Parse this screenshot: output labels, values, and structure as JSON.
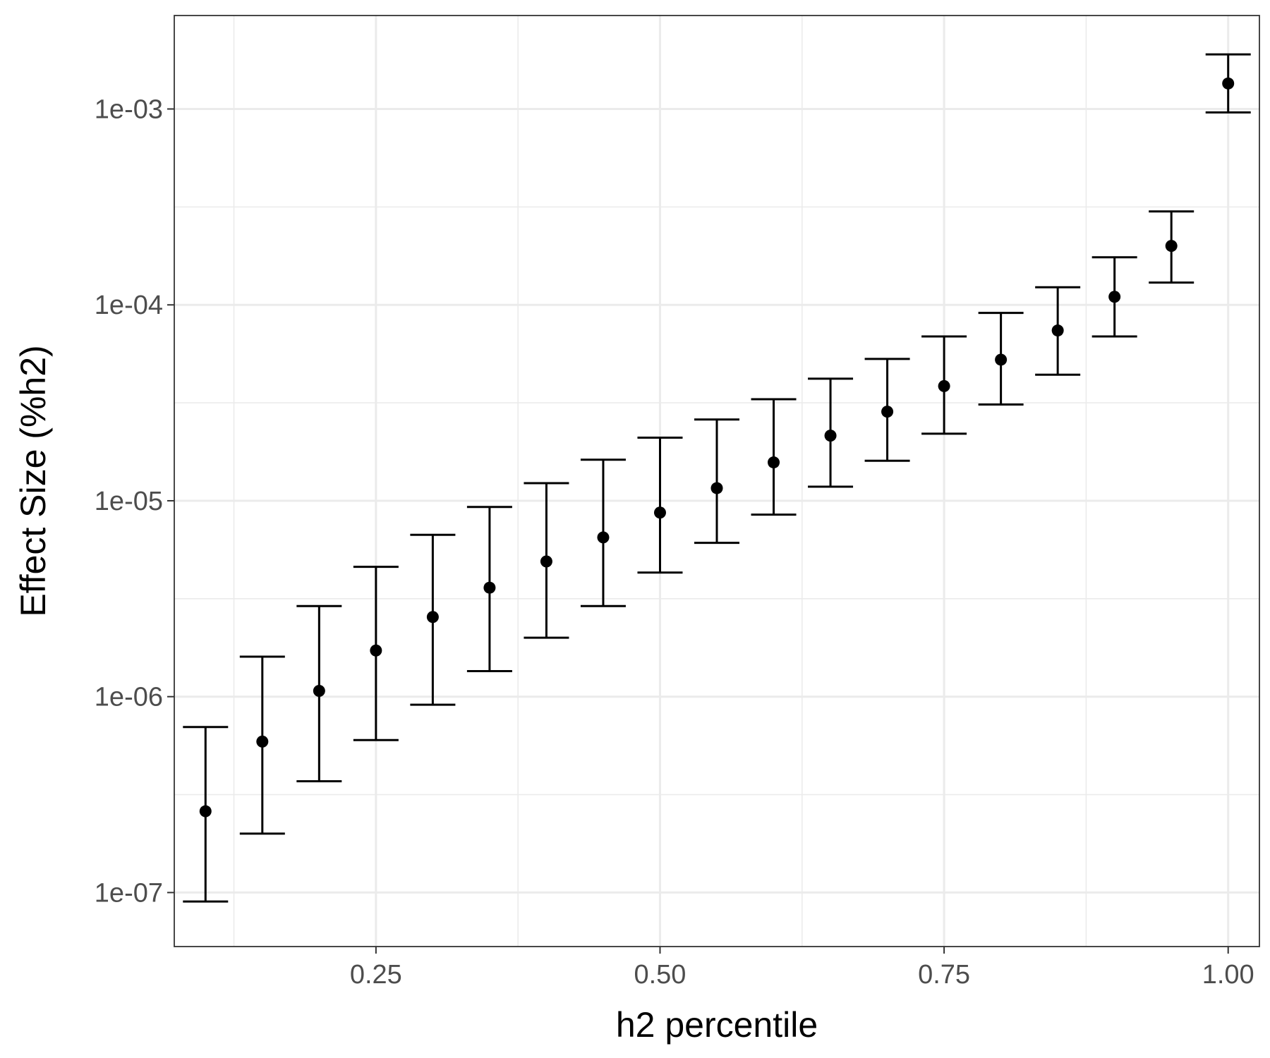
{
  "chart_data": {
    "type": "scatter",
    "subtype": "point-with-errorbars",
    "title": "",
    "xlabel": "h2 percentile",
    "ylabel": "Effect Size (%h2)",
    "x_scale": "linear",
    "y_scale": "log10",
    "xlim": [
      0.0725,
      1.0275
    ],
    "ylim": [
      5.3e-08,
      0.003
    ],
    "x_ticks": [
      0.25,
      0.5,
      0.75,
      1.0
    ],
    "x_tick_labels": [
      "0.25",
      "0.50",
      "0.75",
      "1.00"
    ],
    "y_ticks": [
      1e-07,
      1e-06,
      1e-05,
      0.0001,
      0.001
    ],
    "y_tick_labels": [
      "1e-07",
      "1e-06",
      "1e-05",
      "1e-04",
      "1e-03"
    ],
    "grid": true,
    "legend": "none",
    "colors": {
      "points": "#000000",
      "grid": "#ebebeb",
      "panel_border": "#333333",
      "tick_text": "#4d4d4d"
    },
    "points": [
      {
        "x": 0.1,
        "y": 2.6e-07,
        "ymin": 9e-08,
        "ymax": 7e-07
      },
      {
        "x": 0.15,
        "y": 5.9e-07,
        "ymin": 2e-07,
        "ymax": 1.6e-06
      },
      {
        "x": 0.2,
        "y": 1.07e-06,
        "ymin": 3.7e-07,
        "ymax": 2.9e-06
      },
      {
        "x": 0.25,
        "y": 1.72e-06,
        "ymin": 6e-07,
        "ymax": 4.6e-06
      },
      {
        "x": 0.3,
        "y": 2.55e-06,
        "ymin": 9.1e-07,
        "ymax": 6.7e-06
      },
      {
        "x": 0.35,
        "y": 3.6e-06,
        "ymin": 1.35e-06,
        "ymax": 9.3e-06
      },
      {
        "x": 0.4,
        "y": 4.9e-06,
        "ymin": 2e-06,
        "ymax": 1.23e-05
      },
      {
        "x": 0.45,
        "y": 6.5e-06,
        "ymin": 2.9e-06,
        "ymax": 1.62e-05
      },
      {
        "x": 0.5,
        "y": 8.7e-06,
        "ymin": 4.3e-06,
        "ymax": 2.1e-05
      },
      {
        "x": 0.55,
        "y": 1.16e-05,
        "ymin": 6.1e-06,
        "ymax": 2.6e-05
      },
      {
        "x": 0.6,
        "y": 1.57e-05,
        "ymin": 8.5e-06,
        "ymax": 3.3e-05
      },
      {
        "x": 0.65,
        "y": 2.15e-05,
        "ymin": 1.18e-05,
        "ymax": 4.2e-05
      },
      {
        "x": 0.7,
        "y": 2.85e-05,
        "ymin": 1.6e-05,
        "ymax": 5.3e-05
      },
      {
        "x": 0.75,
        "y": 3.85e-05,
        "ymin": 2.2e-05,
        "ymax": 6.9e-05
      },
      {
        "x": 0.8,
        "y": 5.25e-05,
        "ymin": 3.1e-05,
        "ymax": 9.1e-05
      },
      {
        "x": 0.85,
        "y": 7.4e-05,
        "ymin": 4.4e-05,
        "ymax": 0.000123
      },
      {
        "x": 0.9,
        "y": 0.00011,
        "ymin": 6.9e-05,
        "ymax": 0.000175
      },
      {
        "x": 0.95,
        "y": 0.0002,
        "ymin": 0.00013,
        "ymax": 0.0003
      },
      {
        "x": 1.0,
        "y": 0.00135,
        "ymin": 0.00096,
        "ymax": 0.0019
      }
    ]
  }
}
